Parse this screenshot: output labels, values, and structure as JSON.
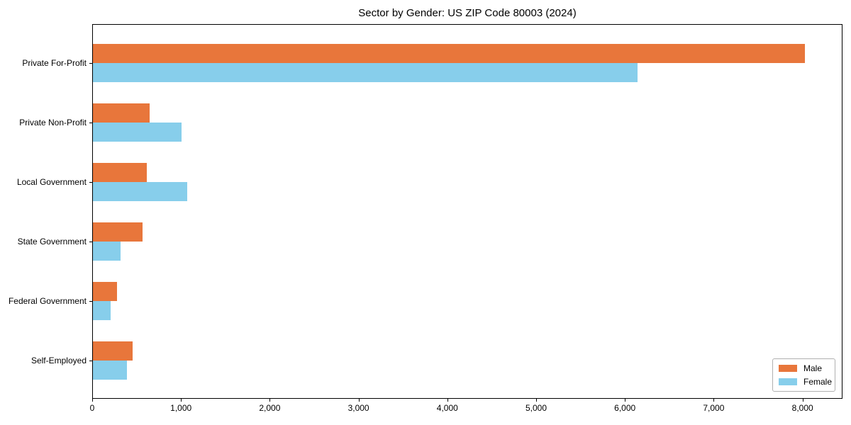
{
  "chart_data": {
    "type": "bar",
    "orientation": "horizontal",
    "title": "Sector by Gender: US ZIP Code 80003 (2024)",
    "categories": [
      "Private For-Profit",
      "Private Non-Profit",
      "Local Government",
      "State Government",
      "Federal Government",
      "Self-Employed"
    ],
    "series": [
      {
        "name": "Male",
        "color": "#e8763b",
        "values": [
          8020,
          640,
          610,
          560,
          270,
          450
        ]
      },
      {
        "name": "Female",
        "color": "#87ceeb",
        "values": [
          6130,
          1000,
          1060,
          310,
          200,
          380
        ]
      }
    ],
    "xlabel": "",
    "ylabel": "",
    "xlim": [
      0,
      8450
    ],
    "xticks": [
      0,
      1000,
      2000,
      3000,
      4000,
      5000,
      6000,
      7000,
      8000
    ],
    "xtick_labels": [
      "0",
      "1,000",
      "2,000",
      "3,000",
      "4,000",
      "5,000",
      "6,000",
      "7,000",
      "8,000"
    ],
    "grid": false,
    "legend": {
      "position": "lower right"
    }
  },
  "colors": {
    "background": "#ffffff",
    "spine": "#000000",
    "text": "#000000",
    "legend_border": "#b0b0b0"
  }
}
